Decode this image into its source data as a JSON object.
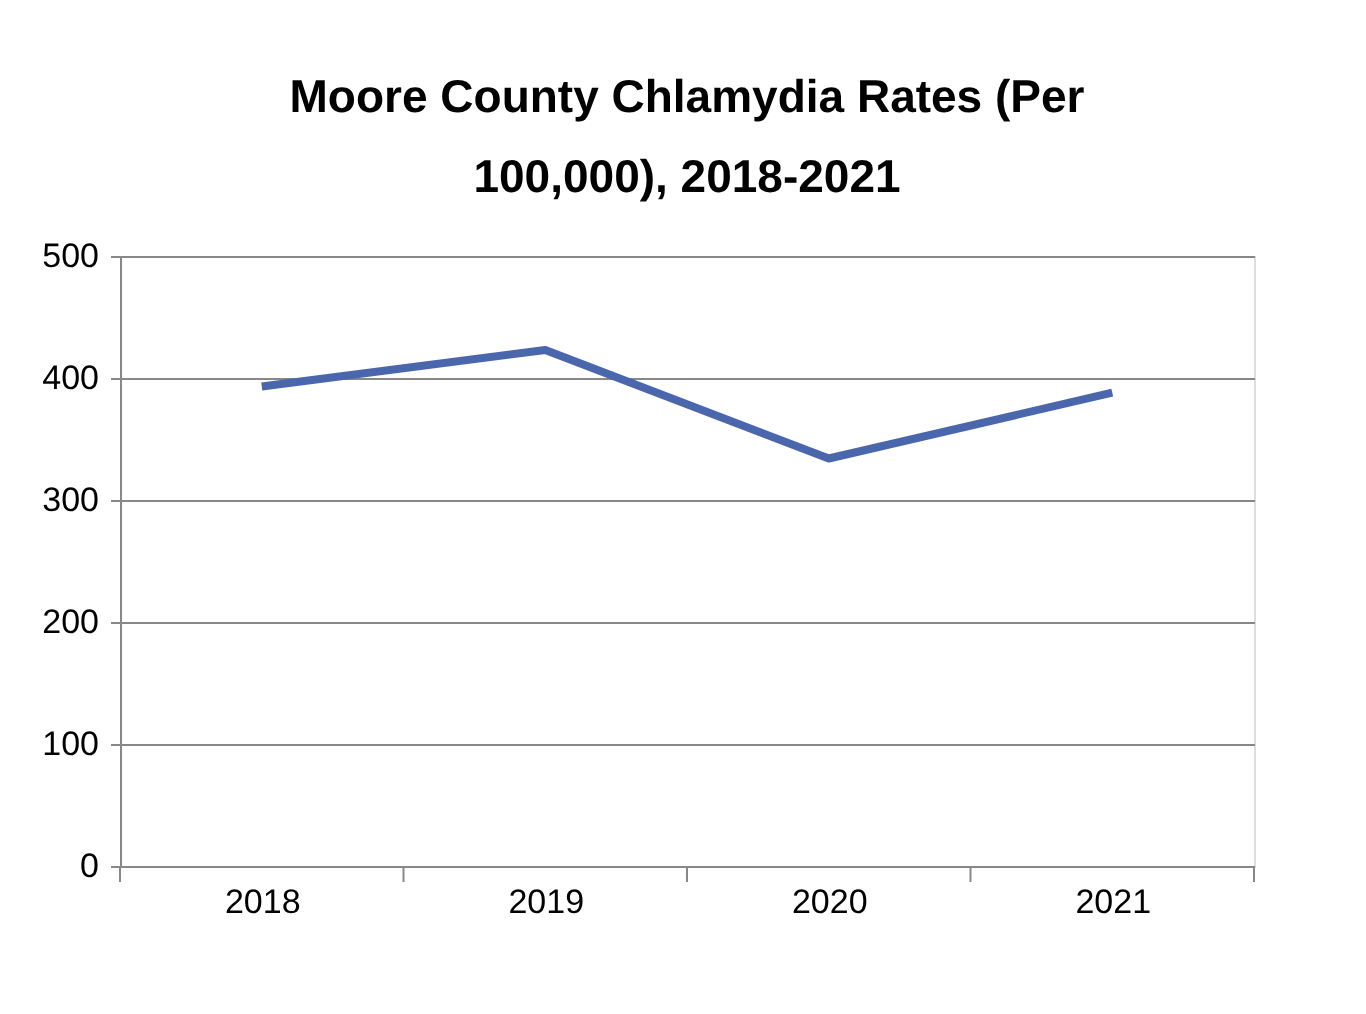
{
  "chart_data": {
    "type": "line",
    "title": "Moore County Chlamydia Rates (Per 100,000), 2018-2021",
    "categories": [
      "2018",
      "2019",
      "2020",
      "2021"
    ],
    "series": [
      {
        "color": "#4a66ac",
        "values": [
          393,
          423,
          334,
          388
        ]
      }
    ],
    "ylim": [
      0,
      500
    ],
    "yticks": [
      0,
      100,
      200,
      300,
      400,
      500
    ],
    "grid": "y",
    "marker": "none",
    "line_style": "solid"
  }
}
